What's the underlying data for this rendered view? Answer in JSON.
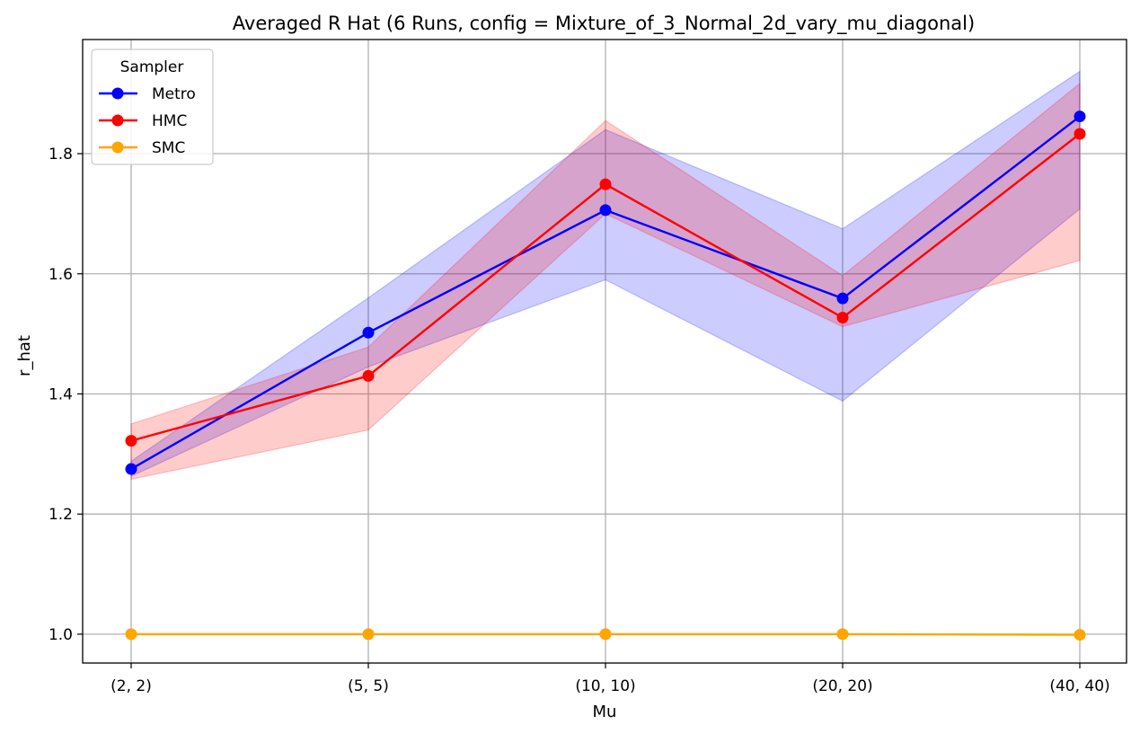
{
  "chart_data": {
    "type": "line",
    "title": "Averaged R Hat (6 Runs, config = Mixture_of_3_Normal_2d_vary_mu_diagonal)",
    "xlabel": "Mu",
    "ylabel": "r_hat",
    "categories": [
      "(2, 2)",
      "(5, 5)",
      "(10, 10)",
      "(20, 20)",
      "(40, 40)"
    ],
    "ylim": [
      0.952,
      1.99
    ],
    "yticks": [
      1.0,
      1.2,
      1.4,
      1.6,
      1.8
    ],
    "ytick_labels": [
      "1.0",
      "1.2",
      "1.4",
      "1.6",
      "1.8"
    ],
    "grid": true,
    "legend": {
      "title": "Sampler",
      "placement": "top-left"
    },
    "series": [
      {
        "name": "Metro",
        "color": "#0000ff",
        "band_color": "#0000ff",
        "values": [
          1.275,
          1.502,
          1.706,
          1.559,
          1.862
        ],
        "lower": [
          1.263,
          1.445,
          1.59,
          1.388,
          1.708
        ],
        "upper": [
          1.288,
          1.56,
          1.84,
          1.675,
          1.937
        ]
      },
      {
        "name": "HMC",
        "color": "#ff0000",
        "band_color": "#ff0000",
        "values": [
          1.322,
          1.43,
          1.749,
          1.527,
          1.833
        ],
        "lower": [
          1.258,
          1.34,
          1.7,
          1.512,
          1.622
        ],
        "upper": [
          1.35,
          1.478,
          1.855,
          1.597,
          1.917
        ]
      },
      {
        "name": "SMC",
        "color": "#ffa500",
        "band_color": "#ffa500",
        "values": [
          1.0,
          1.0,
          1.0,
          1.0,
          0.999
        ],
        "lower": [
          1.0,
          1.0,
          1.0,
          1.0,
          0.999
        ],
        "upper": [
          1.0,
          1.0,
          1.0,
          1.0,
          0.999
        ]
      }
    ]
  }
}
